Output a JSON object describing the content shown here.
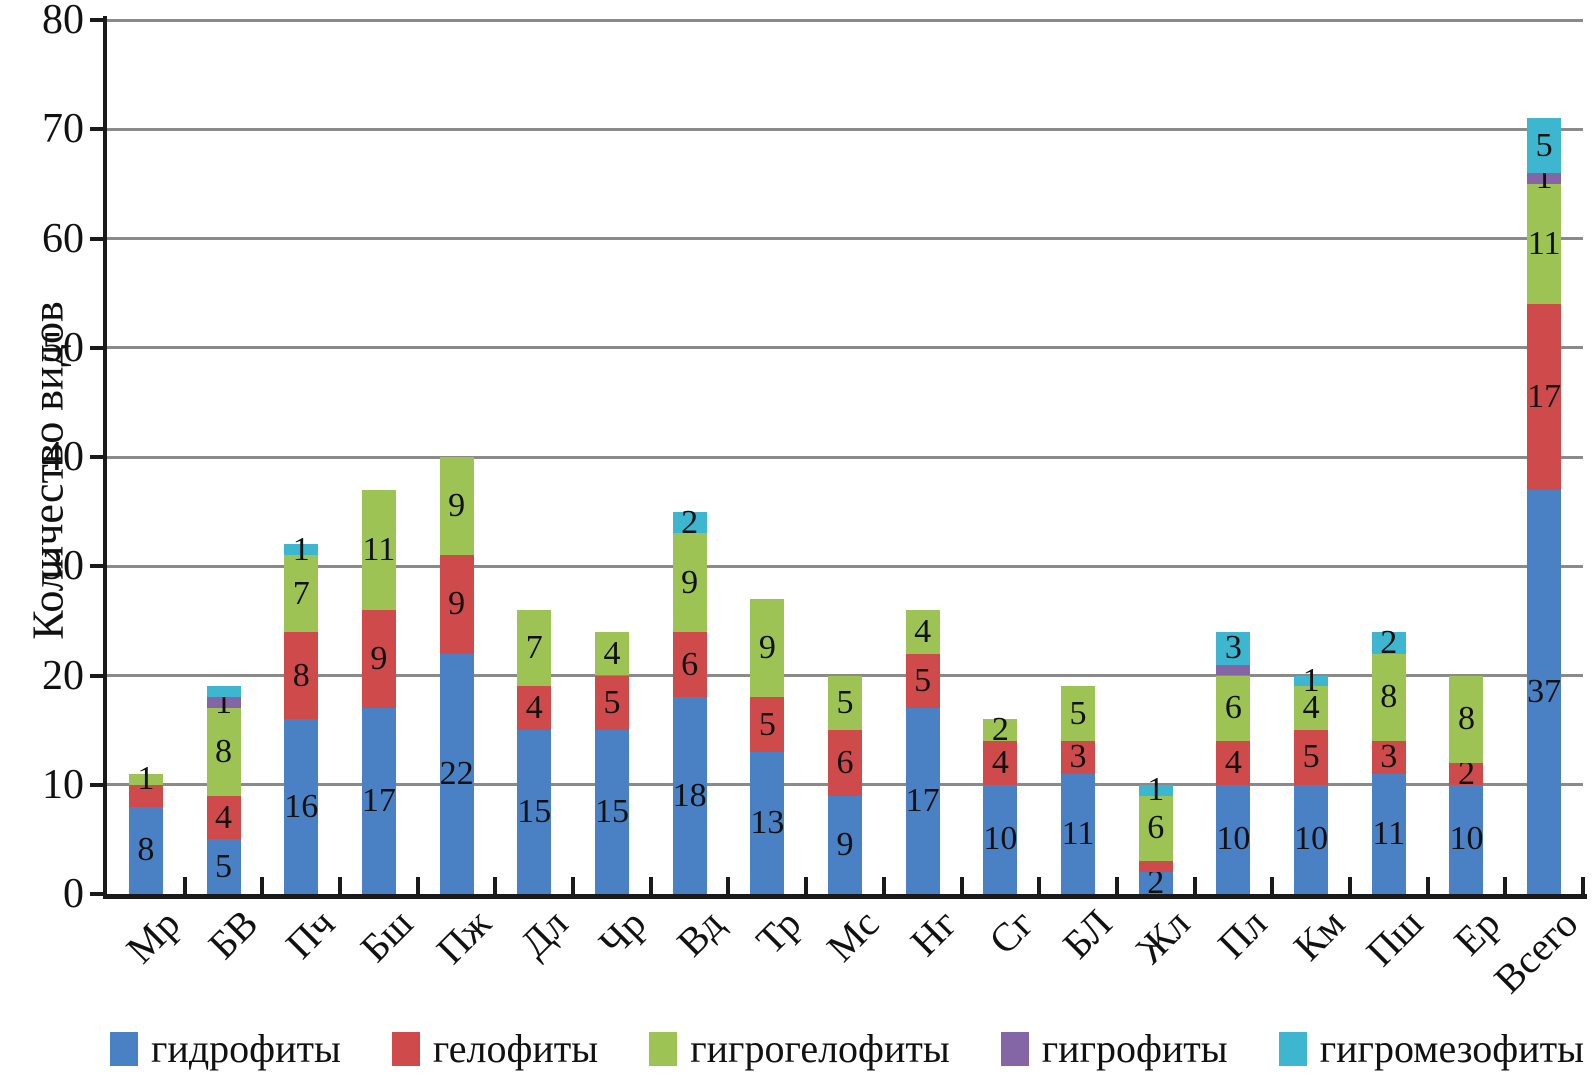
{
  "chart_data": {
    "type": "bar",
    "stacked": true,
    "title": "",
    "xlabel": "",
    "ylabel": "Количество видов",
    "ylim": [
      0,
      80
    ],
    "ytick_step": 10,
    "ytick_labels": [
      "0",
      "10",
      "20",
      "30",
      "40",
      "50",
      "60",
      "70",
      "80"
    ],
    "grid": true,
    "legend_position": "bottom",
    "categories": [
      "Мр",
      "БВ",
      "Пч",
      "Бш",
      "Пж",
      "Дл",
      "Чр",
      "Вд",
      "Тр",
      "Мс",
      "Нг",
      "Сг",
      "БЛ",
      "Жл",
      "Пл",
      "Км",
      "Пш",
      "Ер",
      "Всего"
    ],
    "series": [
      {
        "name": "гидрофиты",
        "color": "#4a80c4",
        "values": [
          8,
          5,
          16,
          17,
          22,
          15,
          15,
          18,
          13,
          9,
          17,
          10,
          11,
          2,
          10,
          10,
          11,
          10,
          37
        ],
        "printed_labels": [
          "8",
          "5",
          "16",
          "17",
          "22",
          "15",
          "15",
          "18",
          "13",
          "9",
          "17",
          "10",
          "11",
          "2",
          "10",
          "10",
          "11",
          "10",
          "37"
        ]
      },
      {
        "name": "гелофиты",
        "color": "#cf4a4a",
        "values": [
          2,
          4,
          8,
          9,
          9,
          4,
          5,
          6,
          5,
          6,
          5,
          4,
          3,
          1,
          4,
          5,
          3,
          2,
          17
        ],
        "printed_labels": [
          "",
          "4",
          "8",
          "9",
          "9",
          "4",
          "5",
          "6",
          "5",
          "6",
          "5",
          "4",
          "3",
          "",
          "4",
          "5",
          "3",
          "2",
          "17"
        ]
      },
      {
        "name": "гигрогелофиты",
        "color": "#9cc353",
        "values": [
          1,
          8,
          7,
          11,
          9,
          7,
          4,
          9,
          9,
          5,
          4,
          2,
          5,
          6,
          6,
          4,
          8,
          8,
          11
        ],
        "printed_labels": [
          "1",
          "8",
          "7",
          "11",
          "9",
          "7",
          "4",
          "9",
          "9",
          "5",
          "4",
          "2",
          "5",
          "6",
          "6",
          "4",
          "8",
          "8",
          "11"
        ]
      },
      {
        "name": "гигрофиты",
        "color": "#8465a5",
        "values": [
          0,
          1,
          0,
          0,
          0,
          0,
          0,
          0,
          0,
          0,
          0,
          0,
          0,
          0,
          1,
          0,
          0,
          0,
          1
        ],
        "printed_labels": [
          "",
          "1",
          "",
          "",
          "",
          "",
          "",
          "",
          "",
          "",
          "",
          "",
          "",
          "",
          "",
          "",
          "",
          "",
          "1"
        ]
      },
      {
        "name": "гигромезофиты",
        "color": "#3eb6d0",
        "values": [
          0,
          1,
          1,
          0,
          0,
          0,
          0,
          2,
          0,
          0,
          0,
          0,
          0,
          1,
          3,
          1,
          2,
          0,
          5
        ],
        "printed_labels": [
          "",
          "",
          "1",
          "",
          "",
          "",
          "",
          "2",
          "",
          "",
          "",
          "",
          "",
          "1",
          "3",
          "1",
          "2",
          "",
          "5"
        ]
      }
    ],
    "totals": [
      11,
      19,
      32,
      37,
      40,
      26,
      24,
      35,
      27,
      20,
      26,
      16,
      19,
      10,
      24,
      20,
      24,
      20,
      71
    ]
  },
  "style": {
    "gridline_color": "#8a8a8a",
    "axis_color": "#1a1a1a",
    "label_color": "#111111",
    "background": "#ffffff"
  }
}
